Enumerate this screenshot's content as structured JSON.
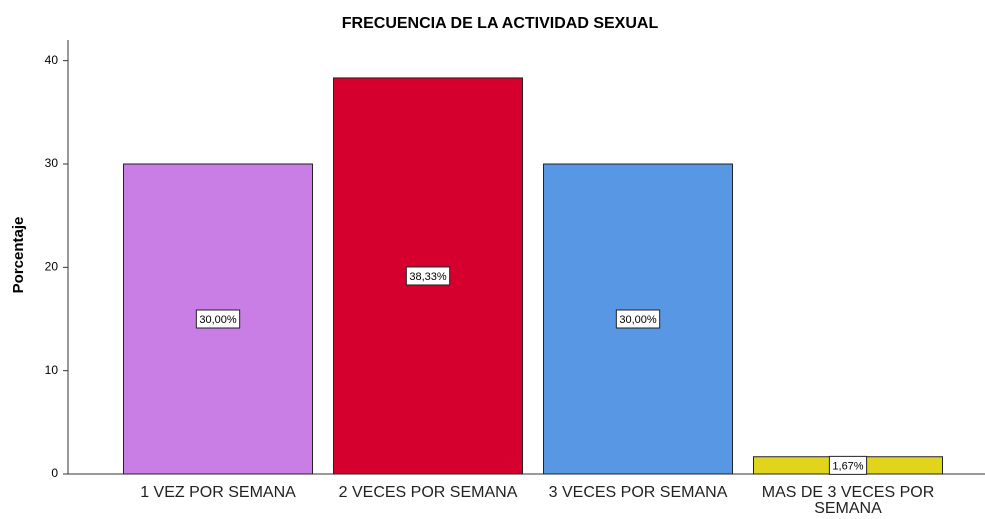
{
  "chart_data": {
    "type": "bar",
    "title": "FRECUENCIA DE LA ACTIVIDAD SEXUAL",
    "y_label": "Porcentaje",
    "categories": [
      "1 VEZ POR SEMANA",
      "2 VECES POR SEMANA",
      "3 VECES POR SEMANA",
      "MAS DE 3 VECES POR SEMANA"
    ],
    "values": [
      30,
      38.33,
      30,
      1.67
    ],
    "value_labels": [
      "30,00%",
      "38,33%",
      "30,00%",
      "1,67%"
    ],
    "colors": [
      "#c97ee6",
      "#d6002e",
      "#5897e4",
      "#e0d41c"
    ],
    "ylim": [
      0,
      42
    ],
    "yticks": [
      0,
      10,
      20,
      30,
      40
    ],
    "grid": false
  }
}
